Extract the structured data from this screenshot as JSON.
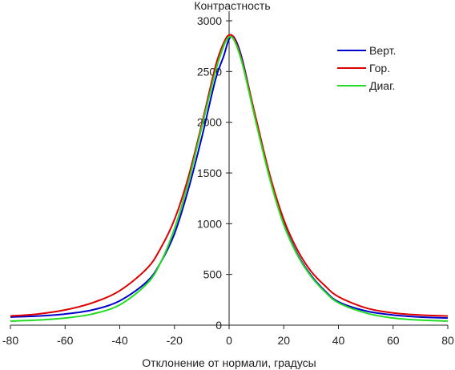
{
  "chart_data": {
    "type": "line",
    "title": "",
    "xlabel": "Отклонение от нормали, градусы",
    "ylabel": "Контрастность",
    "xlim": [
      -80,
      80
    ],
    "ylim": [
      0,
      3000
    ],
    "x_ticks": [
      -80,
      -60,
      -40,
      -20,
      0,
      20,
      40,
      60,
      80
    ],
    "y_ticks": [
      0,
      500,
      1000,
      1500,
      2000,
      2500,
      3000
    ],
    "x_tick_labels": [
      "-80",
      "-60",
      "-40",
      "-20",
      "0",
      "20",
      "40",
      "60",
      "80"
    ],
    "y_tick_labels": [
      "0",
      "500",
      "1000",
      "1500",
      "2000",
      "2500",
      "3000"
    ],
    "grid": false,
    "legend_position": "top-right",
    "series": [
      {
        "name": "Верт.",
        "color": "#0000cc",
        "x": [
          -80,
          -70,
          -60,
          -50,
          -40,
          -30,
          -25,
          -20,
          -15,
          -10,
          -5,
          -2,
          0,
          2,
          5,
          10,
          15,
          20,
          25,
          30,
          35,
          40,
          50,
          60,
          70,
          80
        ],
        "y": [
          80,
          90,
          110,
          150,
          240,
          430,
          620,
          900,
          1330,
          1850,
          2420,
          2650,
          2820,
          2830,
          2600,
          2000,
          1450,
          1000,
          700,
          490,
          340,
          230,
          140,
          100,
          80,
          70
        ]
      },
      {
        "name": "Гор.",
        "color": "#dd0000",
        "x": [
          -80,
          -70,
          -60,
          -50,
          -40,
          -30,
          -25,
          -20,
          -15,
          -10,
          -5,
          -2,
          0,
          2,
          5,
          10,
          15,
          20,
          25,
          30,
          35,
          40,
          50,
          60,
          70,
          80
        ],
        "y": [
          90,
          110,
          150,
          220,
          340,
          560,
          760,
          1040,
          1450,
          1980,
          2550,
          2780,
          2860,
          2820,
          2580,
          2020,
          1470,
          1040,
          740,
          530,
          390,
          280,
          170,
          120,
          100,
          90
        ]
      },
      {
        "name": "Диаг.",
        "color": "#22dd22",
        "x": [
          -80,
          -70,
          -60,
          -50,
          -40,
          -30,
          -25,
          -20,
          -15,
          -10,
          -5,
          -2,
          0,
          2,
          5,
          10,
          15,
          20,
          25,
          30,
          35,
          40,
          50,
          60,
          70,
          80
        ],
        "y": [
          40,
          50,
          70,
          110,
          200,
          410,
          620,
          950,
          1400,
          1950,
          2500,
          2750,
          2840,
          2800,
          2560,
          1980,
          1430,
          990,
          690,
          480,
          330,
          220,
          120,
          70,
          50,
          40
        ]
      }
    ]
  }
}
